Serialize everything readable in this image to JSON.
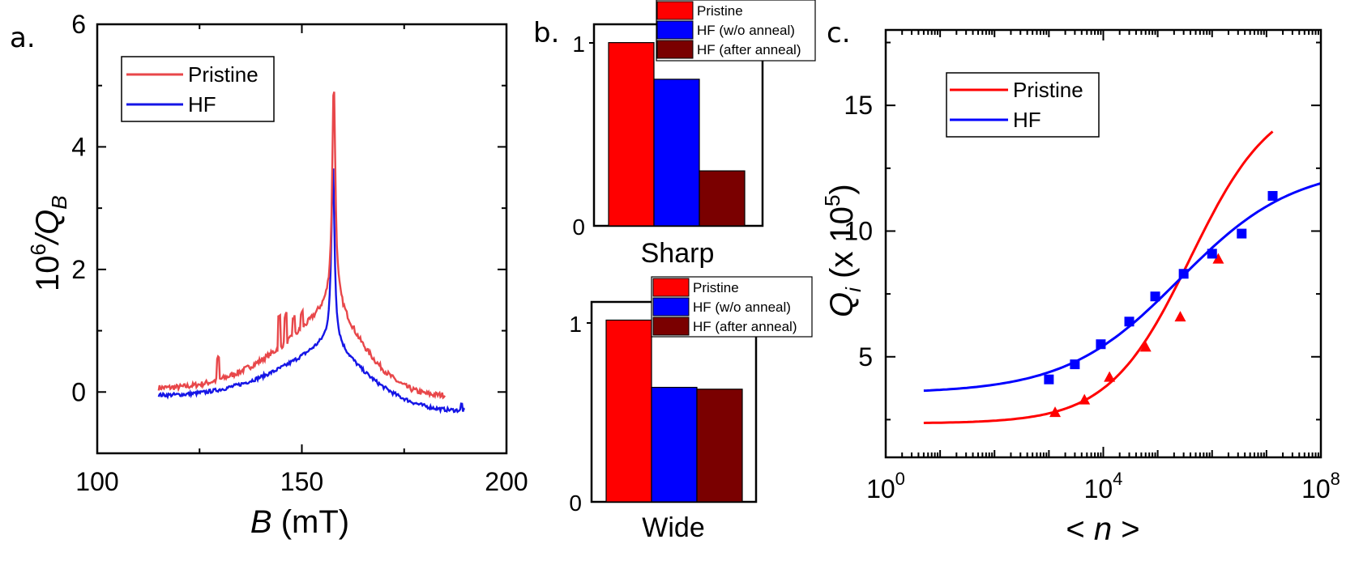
{
  "panels": {
    "a": {
      "letter": "a."
    },
    "b": {
      "letter": "b."
    },
    "c": {
      "letter": "c."
    }
  },
  "colors": {
    "pristine_a": "#e8474a",
    "hf_a": "#1515e6",
    "pristine_bar": "#ff0000",
    "hf_bar": "#0000ff",
    "hf_anneal_bar": "#7a0000",
    "pristine_c": "#ff0000",
    "hf_c": "#0000ff"
  },
  "chart_data": [
    {
      "id": "a",
      "type": "line",
      "ylabel_prefix": "10",
      "ylabel_sup": "6",
      "ylabel_rest": "/Q",
      "ylabel_sub": "B",
      "xlabel_var": "B",
      "xlabel_unit": " (mT)",
      "xlim": [
        100,
        200
      ],
      "ylim": [
        -1,
        6
      ],
      "xticks": [
        "100",
        "150",
        "200"
      ],
      "yticks": [
        "0",
        "2",
        "4",
        "6"
      ],
      "legend": [
        "Pristine",
        "HF"
      ],
      "series": [
        {
          "name": "Pristine",
          "x0": 115,
          "x1": 185,
          "peak_x": 157.8,
          "peak": 5.1,
          "start": 0.07,
          "end": -0.05,
          "left_shoulder": 1.6,
          "right_shoulder": 1.65
        },
        {
          "name": "HF",
          "x0": 115,
          "x1": 190,
          "peak_x": 157.6,
          "peak": 3.75,
          "start": -0.05,
          "end": -0.3,
          "left_shoulder": 0.95,
          "right_shoulder": 0.9
        }
      ]
    },
    {
      "id": "b-sharp",
      "type": "bar",
      "category": "Sharp",
      "ylim": [
        0,
        1.1
      ],
      "yticks": [
        "0",
        "1"
      ],
      "series": [
        {
          "name": "Pristine",
          "value": 1.0
        },
        {
          "name": "HF (w/o anneal)",
          "value": 0.8
        },
        {
          "name": "HF (after anneal)",
          "value": 0.3
        }
      ]
    },
    {
      "id": "b-wide",
      "type": "bar",
      "category": "Wide",
      "ylim": [
        0,
        1.1
      ],
      "yticks": [
        "0",
        "1"
      ],
      "series": [
        {
          "name": "Pristine",
          "value": 1.0
        },
        {
          "name": "HF (w/o anneal)",
          "value": 0.63
        },
        {
          "name": "HF (after anneal)",
          "value": 0.62
        }
      ]
    },
    {
      "id": "c",
      "type": "scatter",
      "xscale": "log",
      "xlim_exp": [
        0,
        8
      ],
      "ylim": [
        1,
        18
      ],
      "xticks": [
        {
          "base": "10",
          "exp": "0"
        },
        {
          "base": "10",
          "exp": "4"
        },
        {
          "base": "10",
          "exp": "8"
        }
      ],
      "yticks": [
        "5",
        "10",
        "15"
      ],
      "xlabel_left": "< ",
      "xlabel_var": "n",
      "xlabel_right": " >",
      "ylabel_var": "Q",
      "ylabel_sub": "i",
      "ylabel_mid": " (x 10",
      "ylabel_sup": "5",
      "ylabel_end": ")",
      "legend": [
        "Pristine",
        "HF"
      ],
      "series": [
        {
          "name": "Pristine",
          "marker": "triangle",
          "points": [
            [
              1300.0,
              2.8
            ],
            [
              4500.0,
              3.3
            ],
            [
              13000.0,
              4.2
            ],
            [
              60000.0,
              5.4
            ],
            [
              260000.0,
              6.6
            ],
            [
              1300000.0,
              8.9
            ]
          ],
          "fit": {
            "min": 2.35,
            "max": 15.5,
            "mid": 5.6,
            "width": 0.75,
            "x_from": 5,
            "x_to": 13000000.0
          }
        },
        {
          "name": "HF",
          "marker": "square",
          "points": [
            [
              1000.0,
              4.1
            ],
            [
              3000.0,
              4.7
            ],
            [
              9000.0,
              5.5
            ],
            [
              30000.0,
              6.4
            ],
            [
              90000.0,
              7.4
            ],
            [
              300000.0,
              8.3
            ],
            [
              1000000.0,
              9.1
            ],
            [
              3500000.0,
              9.9
            ],
            [
              13000000.0,
              11.4
            ]
          ],
          "fit": {
            "min": 3.55,
            "max": 12.6,
            "mid": 5.4,
            "width": 1.05,
            "x_from": 5,
            "x_to": 100000000.0
          }
        }
      ]
    }
  ]
}
